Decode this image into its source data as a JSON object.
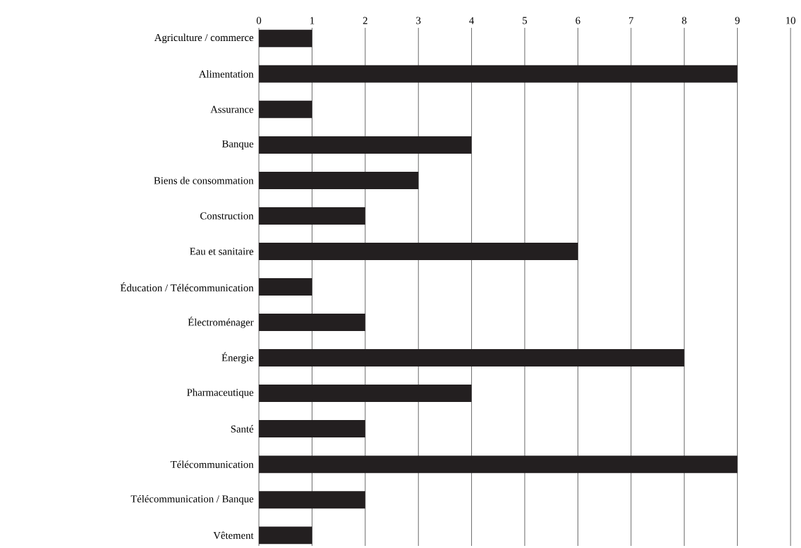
{
  "chart_data": {
    "type": "bar",
    "orientation": "horizontal",
    "categories": [
      "Agriculture / commerce",
      "Alimentation",
      "Assurance",
      "Banque",
      "Biens de consommation",
      "Construction",
      "Eau et sanitaire",
      "Éducation / Télécommunication",
      "Électroménager",
      "Énergie",
      "Pharmaceutique",
      "Santé",
      "Télécommunication",
      "Télécommunication / Banque",
      "Vêtement"
    ],
    "values": [
      1,
      9,
      1,
      4,
      3,
      2,
      6,
      1,
      2,
      8,
      4,
      2,
      9,
      2,
      1
    ],
    "color": "#231f20",
    "xlim": [
      0,
      10
    ],
    "xticks": [
      0,
      1,
      2,
      3,
      4,
      5,
      6,
      7,
      8,
      9,
      10
    ],
    "grid": "x"
  }
}
